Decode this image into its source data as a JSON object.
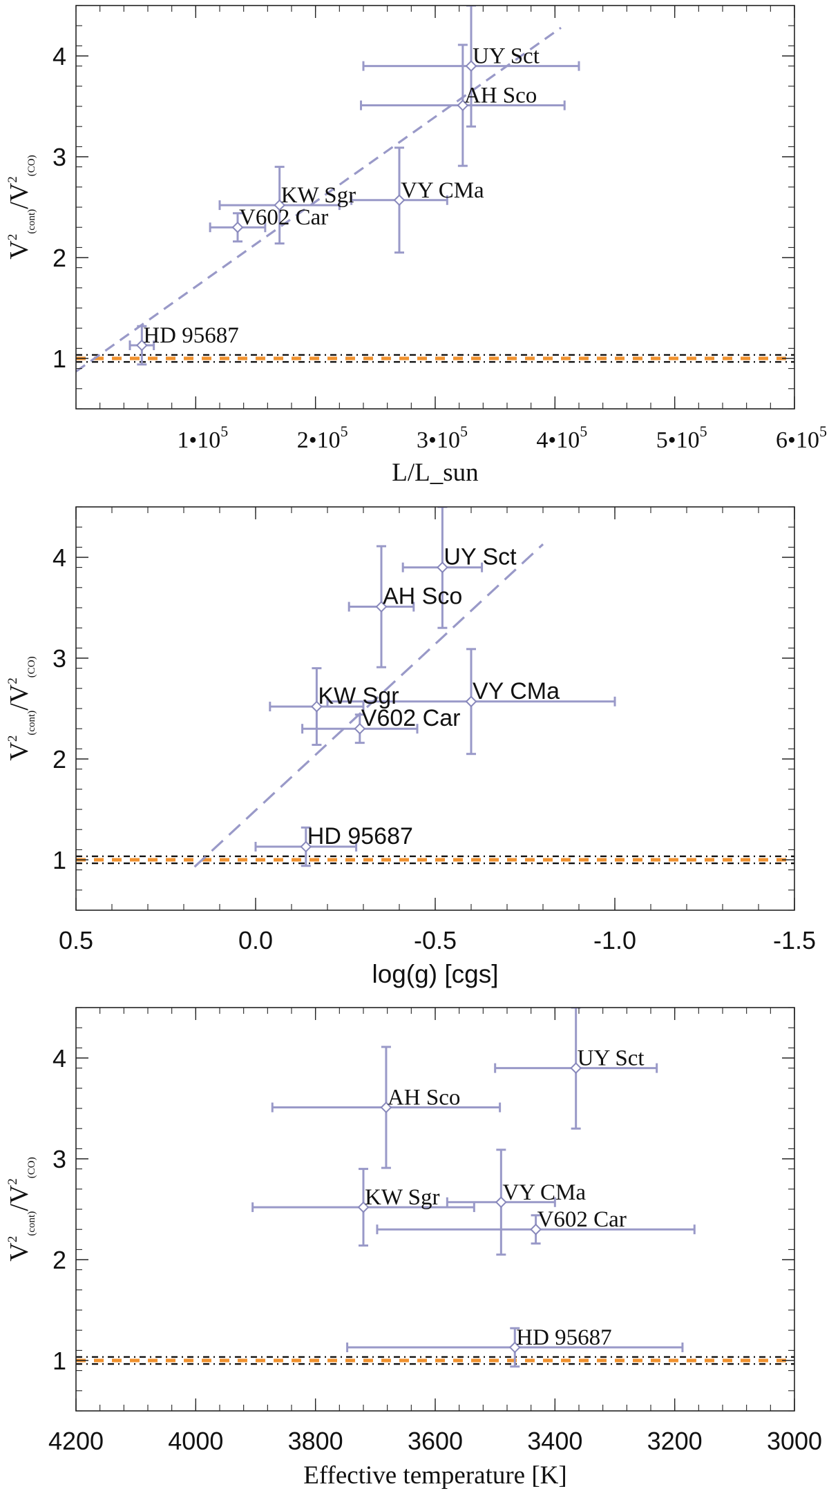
{
  "colors": {
    "points": "#9999c8",
    "reference_orange": "#f0922f",
    "reference_black": "#111111",
    "axes": "#222222"
  },
  "chart_data": [
    {
      "type": "scatter",
      "id": "luminosity",
      "xlabel": "L/L_sun",
      "ylabel": {
        "main1": "V",
        "sup1": "2",
        "sub1": "(cont)",
        "slash": "/",
        "main2": "V",
        "sup2": "2",
        "sub2": "(CO)"
      },
      "xlim": [
        0,
        600000
      ],
      "ylim": [
        0.5,
        4.5
      ],
      "xticks": [
        {
          "value": 100000,
          "base": "1•10",
          "exp": "5"
        },
        {
          "value": 200000,
          "base": "2•10",
          "exp": "5"
        },
        {
          "value": 300000,
          "base": "3•10",
          "exp": "5"
        },
        {
          "value": 400000,
          "base": "4•10",
          "exp": "5"
        },
        {
          "value": 500000,
          "base": "5•10",
          "exp": "5"
        },
        {
          "value": 600000,
          "base": "6•10",
          "exp": "5"
        }
      ],
      "xminor_step": 20000,
      "yticks": [
        {
          "value": 1,
          "label": "1"
        },
        {
          "value": 2,
          "label": "2"
        },
        {
          "value": 3,
          "label": "3"
        },
        {
          "value": 4,
          "label": "4"
        }
      ],
      "yminor_step": 0.2,
      "points": [
        {
          "name": "UY Sct",
          "x": 330000,
          "y": 3.9,
          "xerr_lo": 90000,
          "xerr_hi": 90000,
          "yerr_lo": 0.6,
          "yerr_hi": 0.6
        },
        {
          "name": "AH Sco",
          "x": 323000,
          "y": 3.51,
          "xerr_lo": 85000,
          "xerr_hi": 85000,
          "yerr_lo": 0.6,
          "yerr_hi": 0.6
        },
        {
          "name": "VY CMa",
          "x": 270000,
          "y": 2.57,
          "xerr_lo": 40000,
          "xerr_hi": 40000,
          "yerr_lo": 0.52,
          "yerr_hi": 0.52
        },
        {
          "name": "KW Sgr",
          "x": 170000,
          "y": 2.52,
          "xerr_lo": 50000,
          "xerr_hi": 50000,
          "yerr_lo": 0.38,
          "yerr_hi": 0.38
        },
        {
          "name": "V602 Car",
          "x": 135000,
          "y": 2.3,
          "xerr_lo": 23000,
          "xerr_hi": 23000,
          "yerr_lo": 0.14,
          "yerr_hi": 0.14
        },
        {
          "name": "HD 95687",
          "x": 55000,
          "y": 1.13,
          "xerr_lo": 10000,
          "xerr_hi": 10000,
          "yerr_lo": 0.19,
          "yerr_hi": 0.19
        }
      ],
      "fit": {
        "x1": 0,
        "y1": 0.87,
        "x2": 405000,
        "y2": 4.28
      },
      "reference_y": 1.0,
      "reference_offset": 0.035
    },
    {
      "type": "scatter",
      "id": "gravity",
      "xlabel": "log(g) [cgs]",
      "ylabel": {
        "main1": "V",
        "sup1": "2",
        "sub1": "(cont)",
        "slash": "/",
        "main2": "V",
        "sup2": "2",
        "sub2": "(CO)"
      },
      "xlim": [
        0.5,
        -1.5
      ],
      "ylim": [
        0.5,
        4.5
      ],
      "xticks": [
        {
          "value": 0.5,
          "label": "0.5"
        },
        {
          "value": 0.0,
          "label": "0.0"
        },
        {
          "value": -0.5,
          "label": "-0.5"
        },
        {
          "value": -1.0,
          "label": "-1.0"
        },
        {
          "value": -1.5,
          "label": "-1.5"
        }
      ],
      "xminor_step": 0.1,
      "yticks": [
        {
          "value": 1,
          "label": "1"
        },
        {
          "value": 2,
          "label": "2"
        },
        {
          "value": 3,
          "label": "3"
        },
        {
          "value": 4,
          "label": "4"
        }
      ],
      "yminor_step": 0.2,
      "points": [
        {
          "name": "UY Sct",
          "x": -0.52,
          "y": 3.9,
          "xerr_lo": 0.11,
          "xerr_hi": 0.11,
          "yerr_lo": 0.6,
          "yerr_hi": 0.6
        },
        {
          "name": "AH Sco",
          "x": -0.35,
          "y": 3.51,
          "xerr_lo": 0.09,
          "xerr_hi": 0.09,
          "yerr_lo": 0.6,
          "yerr_hi": 0.6
        },
        {
          "name": "VY CMa",
          "x": -0.6,
          "y": 2.57,
          "xerr_lo": 0.4,
          "xerr_hi": 0.4,
          "yerr_lo": 0.52,
          "yerr_hi": 0.52
        },
        {
          "name": "KW Sgr",
          "x": -0.17,
          "y": 2.52,
          "xerr_lo": 0.13,
          "xerr_hi": 0.13,
          "yerr_lo": 0.38,
          "yerr_hi": 0.38
        },
        {
          "name": "V602 Car",
          "x": -0.29,
          "y": 2.3,
          "xerr_lo": 0.16,
          "xerr_hi": 0.16,
          "yerr_lo": 0.14,
          "yerr_hi": 0.14
        },
        {
          "name": "HD 95687",
          "x": -0.14,
          "y": 1.13,
          "xerr_lo": 0.14,
          "xerr_hi": 0.14,
          "yerr_lo": 0.19,
          "yerr_hi": 0.19
        }
      ],
      "fit": {
        "x1": 0.17,
        "y1": 0.93,
        "x2": -0.8,
        "y2": 4.13
      },
      "reference_y": 1.0,
      "reference_offset": 0.035
    },
    {
      "type": "scatter",
      "id": "temperature",
      "xlabel": "Effective temperature [K]",
      "ylabel": {
        "main1": "V",
        "sup1": "2",
        "sub1": "(cont)",
        "slash": "/",
        "main2": "V",
        "sup2": "2",
        "sub2": "(CO)"
      },
      "xlim": [
        4200,
        3000
      ],
      "ylim": [
        0.5,
        4.5
      ],
      "xticks": [
        {
          "value": 4200,
          "label": "4200"
        },
        {
          "value": 4000,
          "label": "4000"
        },
        {
          "value": 3800,
          "label": "3800"
        },
        {
          "value": 3600,
          "label": "3600"
        },
        {
          "value": 3400,
          "label": "3400"
        },
        {
          "value": 3200,
          "label": "3200"
        },
        {
          "value": 3000,
          "label": "3000"
        }
      ],
      "xminor_step": 40,
      "yticks": [
        {
          "value": 1,
          "label": "1"
        },
        {
          "value": 2,
          "label": "2"
        },
        {
          "value": 3,
          "label": "3"
        },
        {
          "value": 4,
          "label": "4"
        }
      ],
      "yminor_step": 0.2,
      "points": [
        {
          "name": "UY Sct",
          "x": 3365,
          "y": 3.9,
          "xerr_lo": 135,
          "xerr_hi": 135,
          "yerr_lo": 0.6,
          "yerr_hi": 0.6
        },
        {
          "name": "AH Sco",
          "x": 3682,
          "y": 3.51,
          "xerr_lo": 190,
          "xerr_hi": 190,
          "yerr_lo": 0.6,
          "yerr_hi": 0.6
        },
        {
          "name": "VY CMa",
          "x": 3490,
          "y": 2.57,
          "xerr_lo": 90,
          "xerr_hi": 90,
          "yerr_lo": 0.52,
          "yerr_hi": 0.52
        },
        {
          "name": "KW Sgr",
          "x": 3720,
          "y": 2.52,
          "xerr_lo": 185,
          "xerr_hi": 185,
          "yerr_lo": 0.38,
          "yerr_hi": 0.38
        },
        {
          "name": "V602 Car",
          "x": 3432,
          "y": 2.3,
          "xerr_lo": 265,
          "xerr_hi": 265,
          "yerr_lo": 0.14,
          "yerr_hi": 0.14
        },
        {
          "name": "HD 95687",
          "x": 3467,
          "y": 1.13,
          "xerr_lo": 280,
          "xerr_hi": 280,
          "yerr_lo": 0.19,
          "yerr_hi": 0.19
        }
      ],
      "fit": null,
      "reference_y": 1.0,
      "reference_offset": 0.035
    }
  ]
}
